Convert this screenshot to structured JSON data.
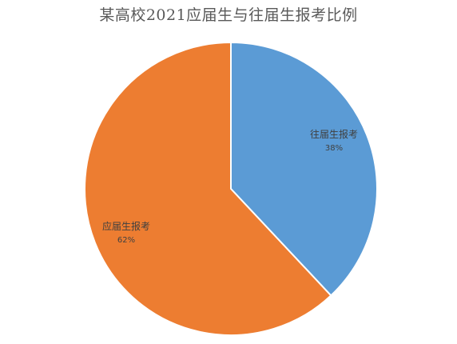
{
  "chart_data": {
    "type": "pie",
    "title": "某高校2021应届生与往届生报考比例",
    "slices": [
      {
        "label": "往届生报考",
        "value": 38,
        "value_label": "38%",
        "color": "#5b9bd5"
      },
      {
        "label": "应届生报考",
        "value": 62,
        "value_label": "62%",
        "color": "#ed7d31"
      }
    ],
    "start_angle": "12 o'clock",
    "direction": "clockwise",
    "legend": "none",
    "data_labels": "inside, category name and percentage"
  }
}
